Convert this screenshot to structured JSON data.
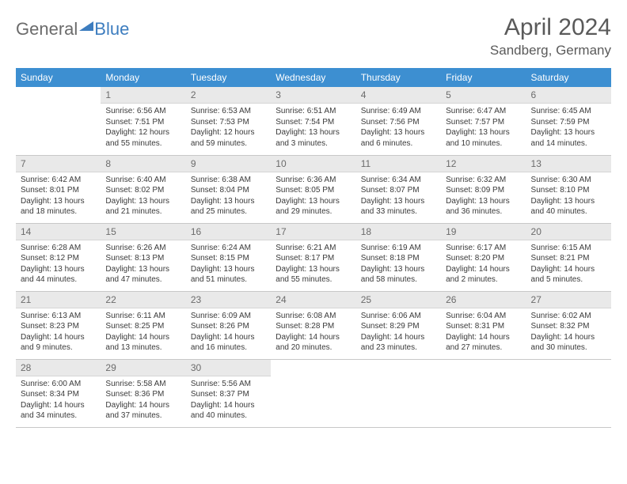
{
  "logo": {
    "part1": "General",
    "part2": "Blue"
  },
  "title": "April 2024",
  "location": "Sandberg, Germany",
  "colors": {
    "header_bg": "#3d8fd1",
    "header_fg": "#ffffff",
    "daynum_bg": "#e9e9e9",
    "border": "#c8c8c8",
    "logo_accent": "#3d7dbf",
    "text": "#333333"
  },
  "weekdays": [
    "Sunday",
    "Monday",
    "Tuesday",
    "Wednesday",
    "Thursday",
    "Friday",
    "Saturday"
  ],
  "weeks": [
    [
      null,
      {
        "n": "1",
        "sr": "Sunrise: 6:56 AM",
        "ss": "Sunset: 7:51 PM",
        "d1": "Daylight: 12 hours",
        "d2": "and 55 minutes."
      },
      {
        "n": "2",
        "sr": "Sunrise: 6:53 AM",
        "ss": "Sunset: 7:53 PM",
        "d1": "Daylight: 12 hours",
        "d2": "and 59 minutes."
      },
      {
        "n": "3",
        "sr": "Sunrise: 6:51 AM",
        "ss": "Sunset: 7:54 PM",
        "d1": "Daylight: 13 hours",
        "d2": "and 3 minutes."
      },
      {
        "n": "4",
        "sr": "Sunrise: 6:49 AM",
        "ss": "Sunset: 7:56 PM",
        "d1": "Daylight: 13 hours",
        "d2": "and 6 minutes."
      },
      {
        "n": "5",
        "sr": "Sunrise: 6:47 AM",
        "ss": "Sunset: 7:57 PM",
        "d1": "Daylight: 13 hours",
        "d2": "and 10 minutes."
      },
      {
        "n": "6",
        "sr": "Sunrise: 6:45 AM",
        "ss": "Sunset: 7:59 PM",
        "d1": "Daylight: 13 hours",
        "d2": "and 14 minutes."
      }
    ],
    [
      {
        "n": "7",
        "sr": "Sunrise: 6:42 AM",
        "ss": "Sunset: 8:01 PM",
        "d1": "Daylight: 13 hours",
        "d2": "and 18 minutes."
      },
      {
        "n": "8",
        "sr": "Sunrise: 6:40 AM",
        "ss": "Sunset: 8:02 PM",
        "d1": "Daylight: 13 hours",
        "d2": "and 21 minutes."
      },
      {
        "n": "9",
        "sr": "Sunrise: 6:38 AM",
        "ss": "Sunset: 8:04 PM",
        "d1": "Daylight: 13 hours",
        "d2": "and 25 minutes."
      },
      {
        "n": "10",
        "sr": "Sunrise: 6:36 AM",
        "ss": "Sunset: 8:05 PM",
        "d1": "Daylight: 13 hours",
        "d2": "and 29 minutes."
      },
      {
        "n": "11",
        "sr": "Sunrise: 6:34 AM",
        "ss": "Sunset: 8:07 PM",
        "d1": "Daylight: 13 hours",
        "d2": "and 33 minutes."
      },
      {
        "n": "12",
        "sr": "Sunrise: 6:32 AM",
        "ss": "Sunset: 8:09 PM",
        "d1": "Daylight: 13 hours",
        "d2": "and 36 minutes."
      },
      {
        "n": "13",
        "sr": "Sunrise: 6:30 AM",
        "ss": "Sunset: 8:10 PM",
        "d1": "Daylight: 13 hours",
        "d2": "and 40 minutes."
      }
    ],
    [
      {
        "n": "14",
        "sr": "Sunrise: 6:28 AM",
        "ss": "Sunset: 8:12 PM",
        "d1": "Daylight: 13 hours",
        "d2": "and 44 minutes."
      },
      {
        "n": "15",
        "sr": "Sunrise: 6:26 AM",
        "ss": "Sunset: 8:13 PM",
        "d1": "Daylight: 13 hours",
        "d2": "and 47 minutes."
      },
      {
        "n": "16",
        "sr": "Sunrise: 6:24 AM",
        "ss": "Sunset: 8:15 PM",
        "d1": "Daylight: 13 hours",
        "d2": "and 51 minutes."
      },
      {
        "n": "17",
        "sr": "Sunrise: 6:21 AM",
        "ss": "Sunset: 8:17 PM",
        "d1": "Daylight: 13 hours",
        "d2": "and 55 minutes."
      },
      {
        "n": "18",
        "sr": "Sunrise: 6:19 AM",
        "ss": "Sunset: 8:18 PM",
        "d1": "Daylight: 13 hours",
        "d2": "and 58 minutes."
      },
      {
        "n": "19",
        "sr": "Sunrise: 6:17 AM",
        "ss": "Sunset: 8:20 PM",
        "d1": "Daylight: 14 hours",
        "d2": "and 2 minutes."
      },
      {
        "n": "20",
        "sr": "Sunrise: 6:15 AM",
        "ss": "Sunset: 8:21 PM",
        "d1": "Daylight: 14 hours",
        "d2": "and 5 minutes."
      }
    ],
    [
      {
        "n": "21",
        "sr": "Sunrise: 6:13 AM",
        "ss": "Sunset: 8:23 PM",
        "d1": "Daylight: 14 hours",
        "d2": "and 9 minutes."
      },
      {
        "n": "22",
        "sr": "Sunrise: 6:11 AM",
        "ss": "Sunset: 8:25 PM",
        "d1": "Daylight: 14 hours",
        "d2": "and 13 minutes."
      },
      {
        "n": "23",
        "sr": "Sunrise: 6:09 AM",
        "ss": "Sunset: 8:26 PM",
        "d1": "Daylight: 14 hours",
        "d2": "and 16 minutes."
      },
      {
        "n": "24",
        "sr": "Sunrise: 6:08 AM",
        "ss": "Sunset: 8:28 PM",
        "d1": "Daylight: 14 hours",
        "d2": "and 20 minutes."
      },
      {
        "n": "25",
        "sr": "Sunrise: 6:06 AM",
        "ss": "Sunset: 8:29 PM",
        "d1": "Daylight: 14 hours",
        "d2": "and 23 minutes."
      },
      {
        "n": "26",
        "sr": "Sunrise: 6:04 AM",
        "ss": "Sunset: 8:31 PM",
        "d1": "Daylight: 14 hours",
        "d2": "and 27 minutes."
      },
      {
        "n": "27",
        "sr": "Sunrise: 6:02 AM",
        "ss": "Sunset: 8:32 PM",
        "d1": "Daylight: 14 hours",
        "d2": "and 30 minutes."
      }
    ],
    [
      {
        "n": "28",
        "sr": "Sunrise: 6:00 AM",
        "ss": "Sunset: 8:34 PM",
        "d1": "Daylight: 14 hours",
        "d2": "and 34 minutes."
      },
      {
        "n": "29",
        "sr": "Sunrise: 5:58 AM",
        "ss": "Sunset: 8:36 PM",
        "d1": "Daylight: 14 hours",
        "d2": "and 37 minutes."
      },
      {
        "n": "30",
        "sr": "Sunrise: 5:56 AM",
        "ss": "Sunset: 8:37 PM",
        "d1": "Daylight: 14 hours",
        "d2": "and 40 minutes."
      },
      null,
      null,
      null,
      null
    ]
  ]
}
